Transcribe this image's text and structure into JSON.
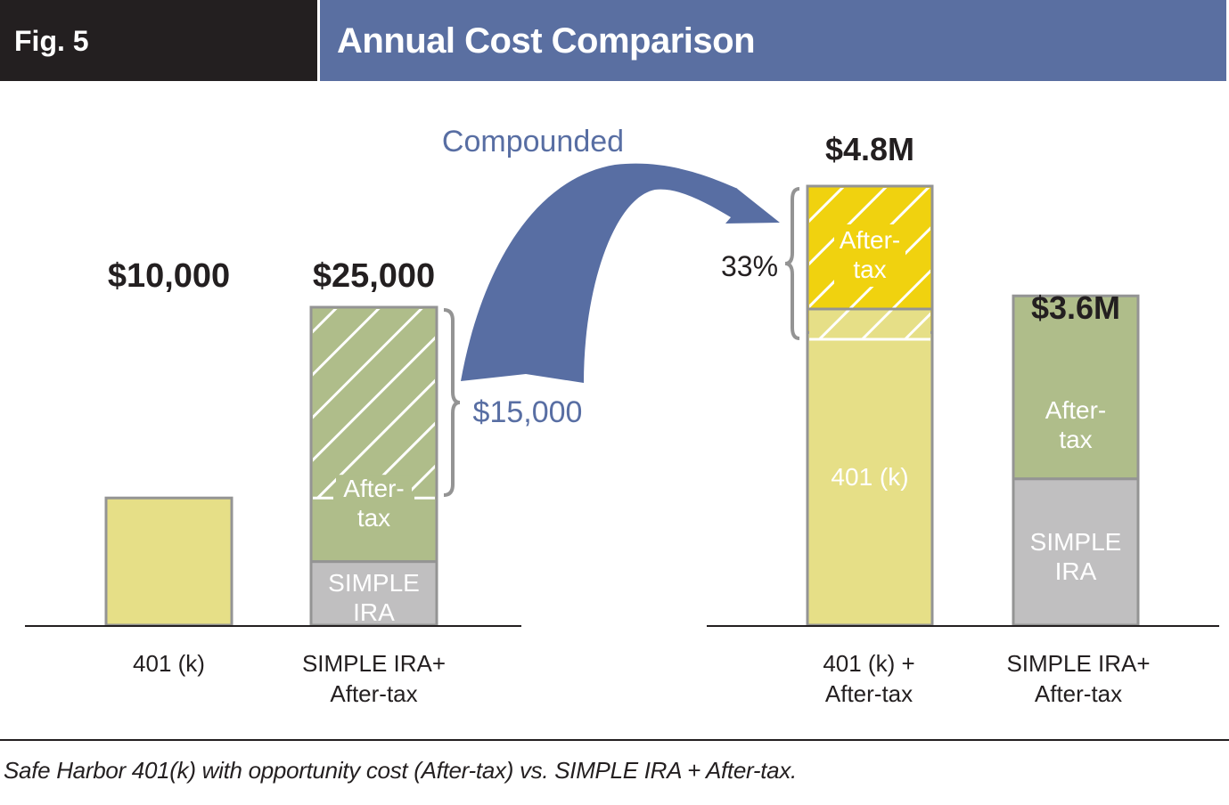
{
  "header": {
    "fig_label": "Fig. 5",
    "title": "Annual Cost Comparison"
  },
  "caption": "Safe Harbor 401(k) with opportunity cost (After-tax) vs. SIMPLE IRA + After-tax.",
  "colors": {
    "header_dark": "#231f20",
    "header_blue": "#5a6fa1",
    "yellow_light": "#e6df87",
    "yellow_bright": "#f0d20f",
    "green": "#afbd8a",
    "gray": "#c0bfc0",
    "border": "#949494",
    "arrow_blue": "#586ea3"
  },
  "chart_data": [
    {
      "type": "bar",
      "title": "Annual contributions",
      "categories": [
        "401 (k)",
        "SIMPLE IRA+\nAfter-tax"
      ],
      "category_lines": [
        [
          "401 (k)"
        ],
        [
          "SIMPLE IRA+",
          "After-tax"
        ]
      ],
      "totals": [
        10000,
        25000
      ],
      "total_labels": [
        "$10,000",
        "$25,000"
      ],
      "stacks": [
        [
          {
            "name": "401 (k)",
            "value": 10000,
            "color": "#e6df87",
            "label": ""
          }
        ],
        [
          {
            "name": "SIMPLE IRA",
            "value": 5000,
            "color": "#c0bfc0",
            "label_lines": [
              "SIMPLE",
              "IRA"
            ]
          },
          {
            "name": "After-tax",
            "value": 20000,
            "color": "#afbd8a",
            "label_lines": [
              "After-",
              "tax"
            ],
            "hatched_portion": 15000
          }
        ]
      ],
      "bracket": {
        "label": "$15,000",
        "value": 15000
      },
      "ylim": [
        0,
        25000
      ]
    },
    {
      "type": "bar",
      "title": "Compounded value",
      "categories": [
        "401 (k) +\nAfter-tax",
        "SIMPLE IRA+\nAfter-tax"
      ],
      "category_lines": [
        [
          "401 (k) +",
          "After-tax"
        ],
        [
          "SIMPLE IRA+",
          "After-tax"
        ]
      ],
      "totals": [
        4.8,
        3.6
      ],
      "total_labels": [
        "$4.8M",
        "$3.6M"
      ],
      "units": "$M",
      "stacks": [
        [
          {
            "name": "401 (k)",
            "value": 3.2,
            "color": "#e6df87",
            "label_lines": [
              "401 (k)"
            ]
          },
          {
            "name": "After-tax",
            "value": 1.6,
            "color": "#f0d20f",
            "label_lines": [
              "After-",
              "tax"
            ],
            "hatched": true
          }
        ],
        [
          {
            "name": "SIMPLE IRA",
            "value": 1.6,
            "color": "#c0bfc0",
            "label_lines": [
              "SIMPLE",
              "IRA"
            ]
          },
          {
            "name": "After-tax",
            "value": 2.0,
            "color": "#afbd8a",
            "label_lines": [
              "After-",
              "tax"
            ]
          }
        ]
      ],
      "bracket": {
        "label": "33%",
        "value_fraction": 0.33
      },
      "ylim": [
        0,
        4.8
      ]
    }
  ],
  "arrow": {
    "label": "Compounded"
  }
}
